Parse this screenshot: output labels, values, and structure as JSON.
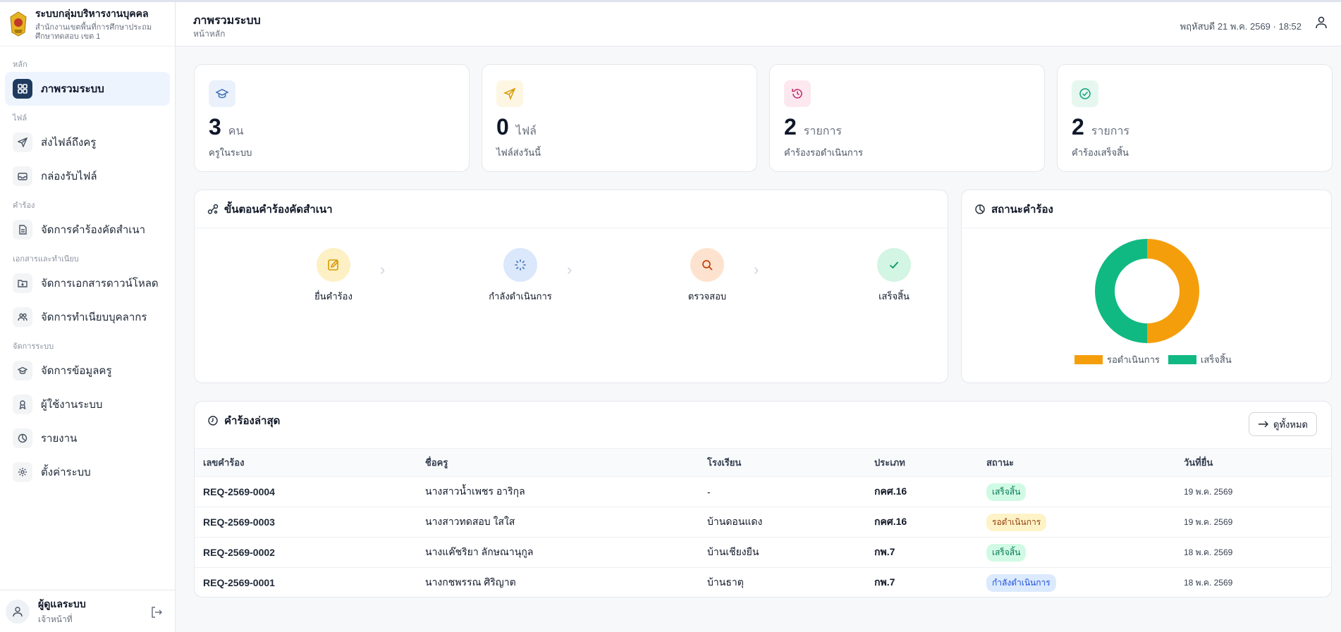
{
  "app": {
    "name": "ระบบกลุ่มบริหารงานบุคคล",
    "org": "สำนักงานเขตพื้นที่การศึกษาประถมศึกษาทดสอบ เขต 1"
  },
  "header": {
    "title": "ภาพรวมระบบ",
    "subtitle": "หน้าหลัก",
    "datetime": "พฤหัสบดี 21 พ.ค. 2569 · 18:52"
  },
  "sidebar": {
    "sections": [
      {
        "label": "หลัก"
      },
      {
        "label": "ไฟล์"
      },
      {
        "label": "คำร้อง"
      },
      {
        "label": "เอกสารและทำเนียบ"
      },
      {
        "label": "จัดการระบบ"
      }
    ],
    "items": [
      {
        "label": "ภาพรวมระบบ",
        "icon": "grid-icon"
      },
      {
        "label": "ส่งไฟล์ถึงครู",
        "icon": "send-icon"
      },
      {
        "label": "กล่องรับไฟล์",
        "icon": "inbox-icon"
      },
      {
        "label": "จัดการคำร้องคัดสำเนา",
        "icon": "document-icon"
      },
      {
        "label": "จัดการเอกสารดาวน์โหลด",
        "icon": "folder-download-icon"
      },
      {
        "label": "จัดการทำเนียบบุคลากร",
        "icon": "people-icon"
      },
      {
        "label": "จัดการข้อมูลครู",
        "icon": "graduation-cap-icon"
      },
      {
        "label": "ผู้ใช้งานระบบ",
        "icon": "user-badge-icon"
      },
      {
        "label": "รายงาน",
        "icon": "pie-chart-icon"
      },
      {
        "label": "ตั้งค่าระบบ",
        "icon": "gear-icon"
      }
    ],
    "user": {
      "name": "ผู้ดูแลระบบ",
      "role": "เจ้าหน้าที่"
    }
  },
  "stats": [
    {
      "value": "3",
      "unit": "คน",
      "label": "ครูในระบบ",
      "color": "#3b6fb6",
      "bg": "#eaf1fb"
    },
    {
      "value": "0",
      "unit": "ไฟล์",
      "label": "ไฟล์ส่งวันนี้",
      "color": "#d99a06",
      "bg": "#fdf6e3"
    },
    {
      "value": "2",
      "unit": "รายการ",
      "label": "คำร้องรอดำเนินการ",
      "color": "#c0266a",
      "bg": "#fde8ef"
    },
    {
      "value": "2",
      "unit": "รายการ",
      "label": "คำร้องเสร็จสิ้น",
      "color": "#10a37a",
      "bg": "#e6f7f0"
    }
  ],
  "process": {
    "title": "ขั้นตอนคำร้องคัดสำเนา",
    "steps": [
      {
        "label": "ยื่นคำร้อง",
        "bg": "#fdf0c4",
        "color": "#d99a06"
      },
      {
        "label": "กำลังดำเนินการ",
        "bg": "#dbe7fb",
        "color": "#3b6fb6"
      },
      {
        "label": "ตรวจสอบ",
        "bg": "#fde3cf",
        "color": "#c2410c"
      },
      {
        "label": "เสร็จสิ้น",
        "bg": "#d3f5e3",
        "color": "#059669"
      }
    ]
  },
  "status_card": {
    "title": "สถานะคำร้อง"
  },
  "chart_data": {
    "type": "pie",
    "categories": [
      "รอดำเนินการ",
      "เสร็จสิ้น"
    ],
    "values": [
      2,
      2
    ],
    "colors": [
      "#f59e0b",
      "#10b981"
    ],
    "legend": "bottom",
    "donut": true
  },
  "latest": {
    "title": "คำร้องล่าสุด",
    "view_all": "ดูทั้งหมด",
    "columns": [
      "เลขคำร้อง",
      "ชื่อครู",
      "โรงเรียน",
      "ประเภท",
      "สถานะ",
      "วันที่ยื่น"
    ],
    "rows": [
      {
        "id": "REQ-2569-0004",
        "name": "นางสาวน้ำเพชร อาริกุล",
        "school": "-",
        "type": "กคศ.16",
        "status": "เสร็จสิ้น",
        "status_kind": "done",
        "date": "19 พ.ค. 2569"
      },
      {
        "id": "REQ-2569-0003",
        "name": "นางสาวทดสอบ ใสใส",
        "school": "บ้านดอนแดง",
        "type": "กคศ.16",
        "status": "รอดำเนินการ",
        "status_kind": "wait",
        "date": "19 พ.ค. 2569"
      },
      {
        "id": "REQ-2569-0002",
        "name": "นางแค๊ชริยา ลักษณานุกูล",
        "school": "บ้านเชียงยืน",
        "type": "กพ.7",
        "status": "เสร็จสิ้น",
        "status_kind": "done",
        "date": "18 พ.ค. 2569"
      },
      {
        "id": "REQ-2569-0001",
        "name": "นางกชพรรณ ศิริญาต",
        "school": "บ้านธาตุ",
        "type": "กพ.7",
        "status": "กำลังดำเนินการ",
        "status_kind": "prog",
        "date": "18 พ.ค. 2569"
      }
    ]
  }
}
